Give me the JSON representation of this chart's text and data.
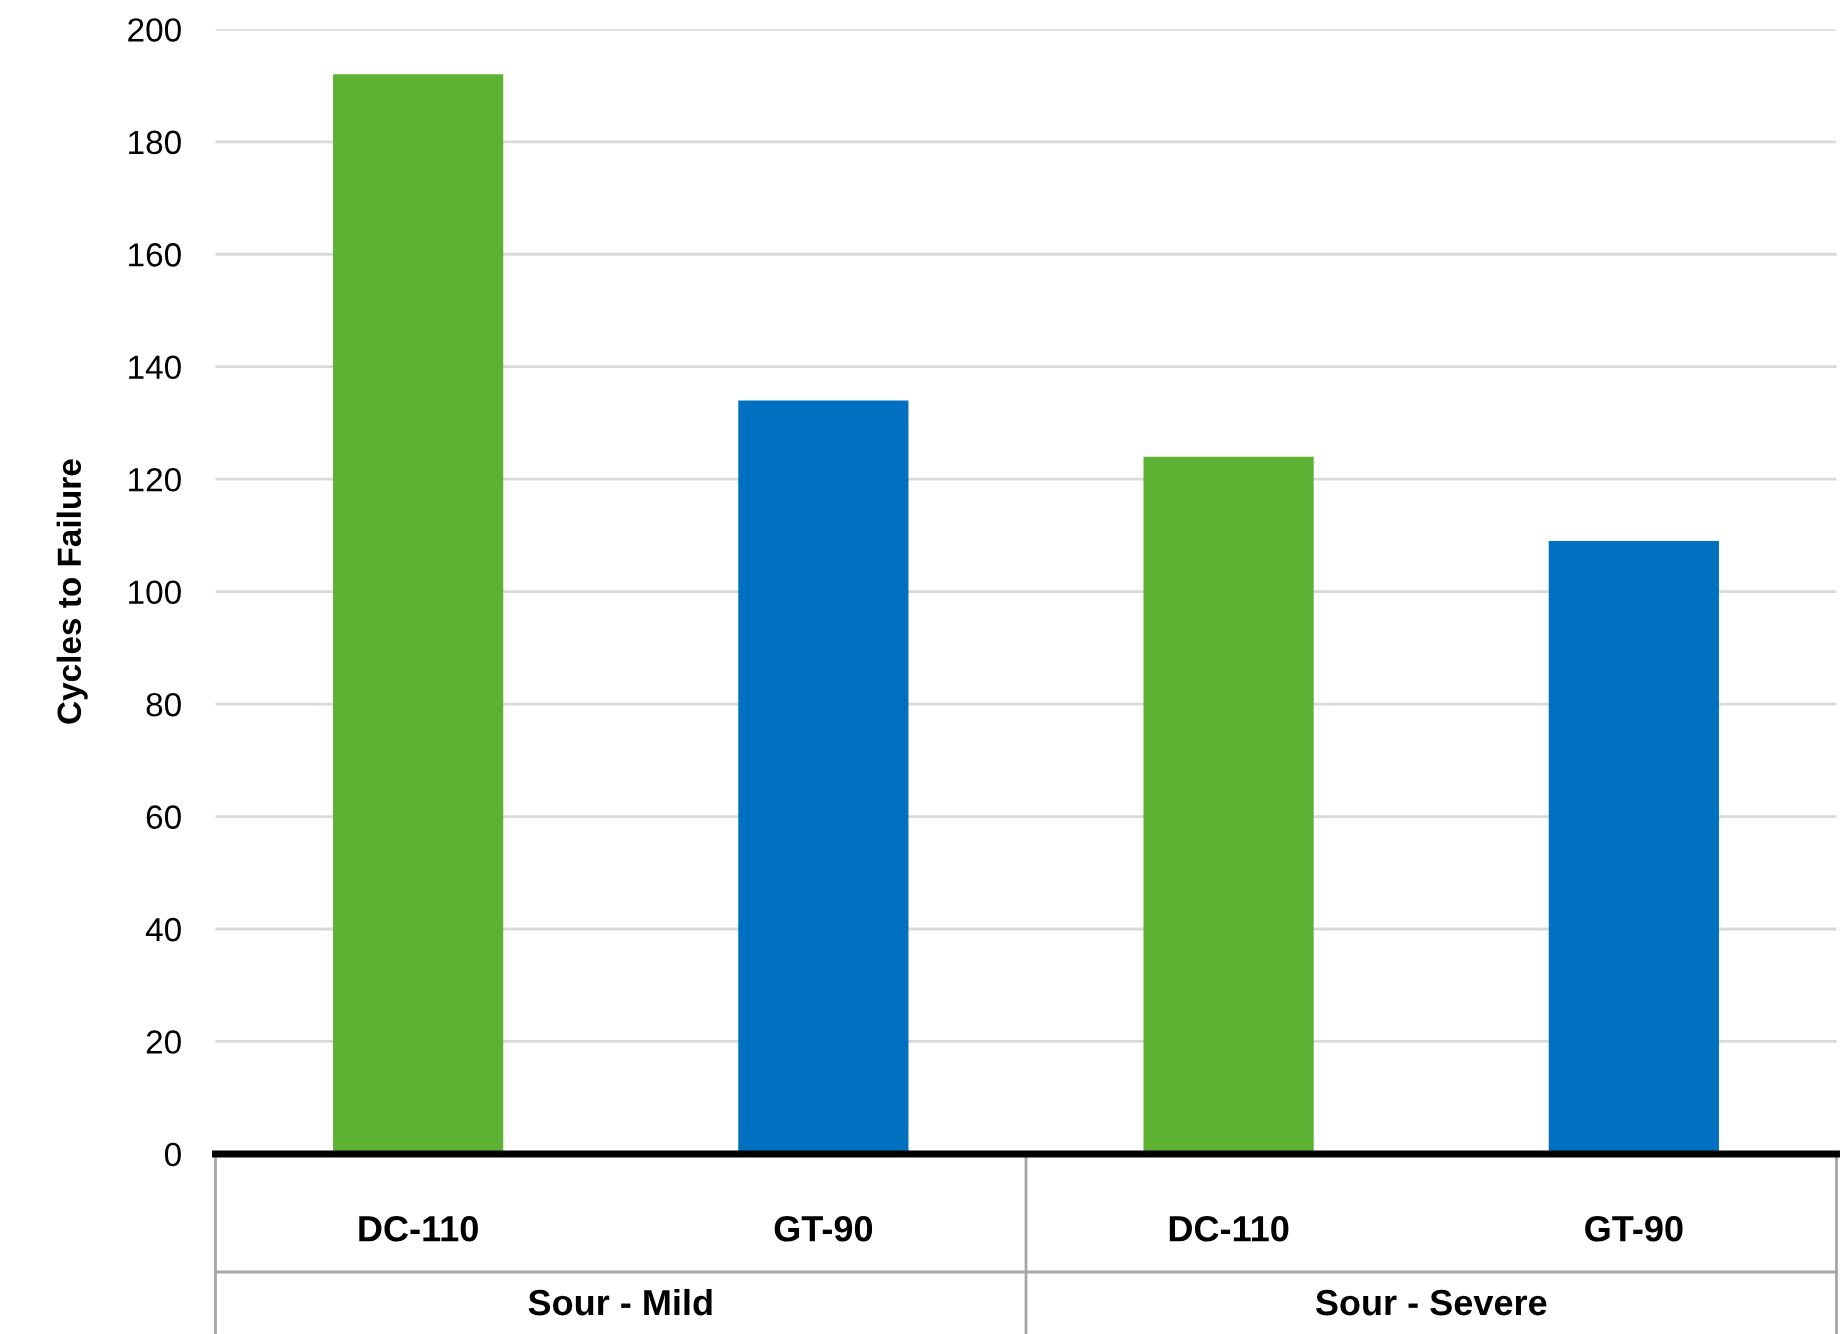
{
  "chart_data": {
    "type": "bar",
    "ylabel": "Cycles to Failure",
    "categories": [
      "DC-110",
      "GT-90",
      "DC-110",
      "GT-90"
    ],
    "values": [
      192,
      134,
      124,
      109
    ],
    "colors": [
      "#5db233",
      "#0070c0",
      "#5db233",
      "#0070c0"
    ],
    "ylim": [
      0,
      200
    ],
    "yticks": [
      0,
      20,
      40,
      60,
      80,
      100,
      120,
      140,
      160,
      180,
      200
    ],
    "grid": "y",
    "annotations": [
      "Sour - Mild",
      "Sour - Severe"
    ]
  }
}
